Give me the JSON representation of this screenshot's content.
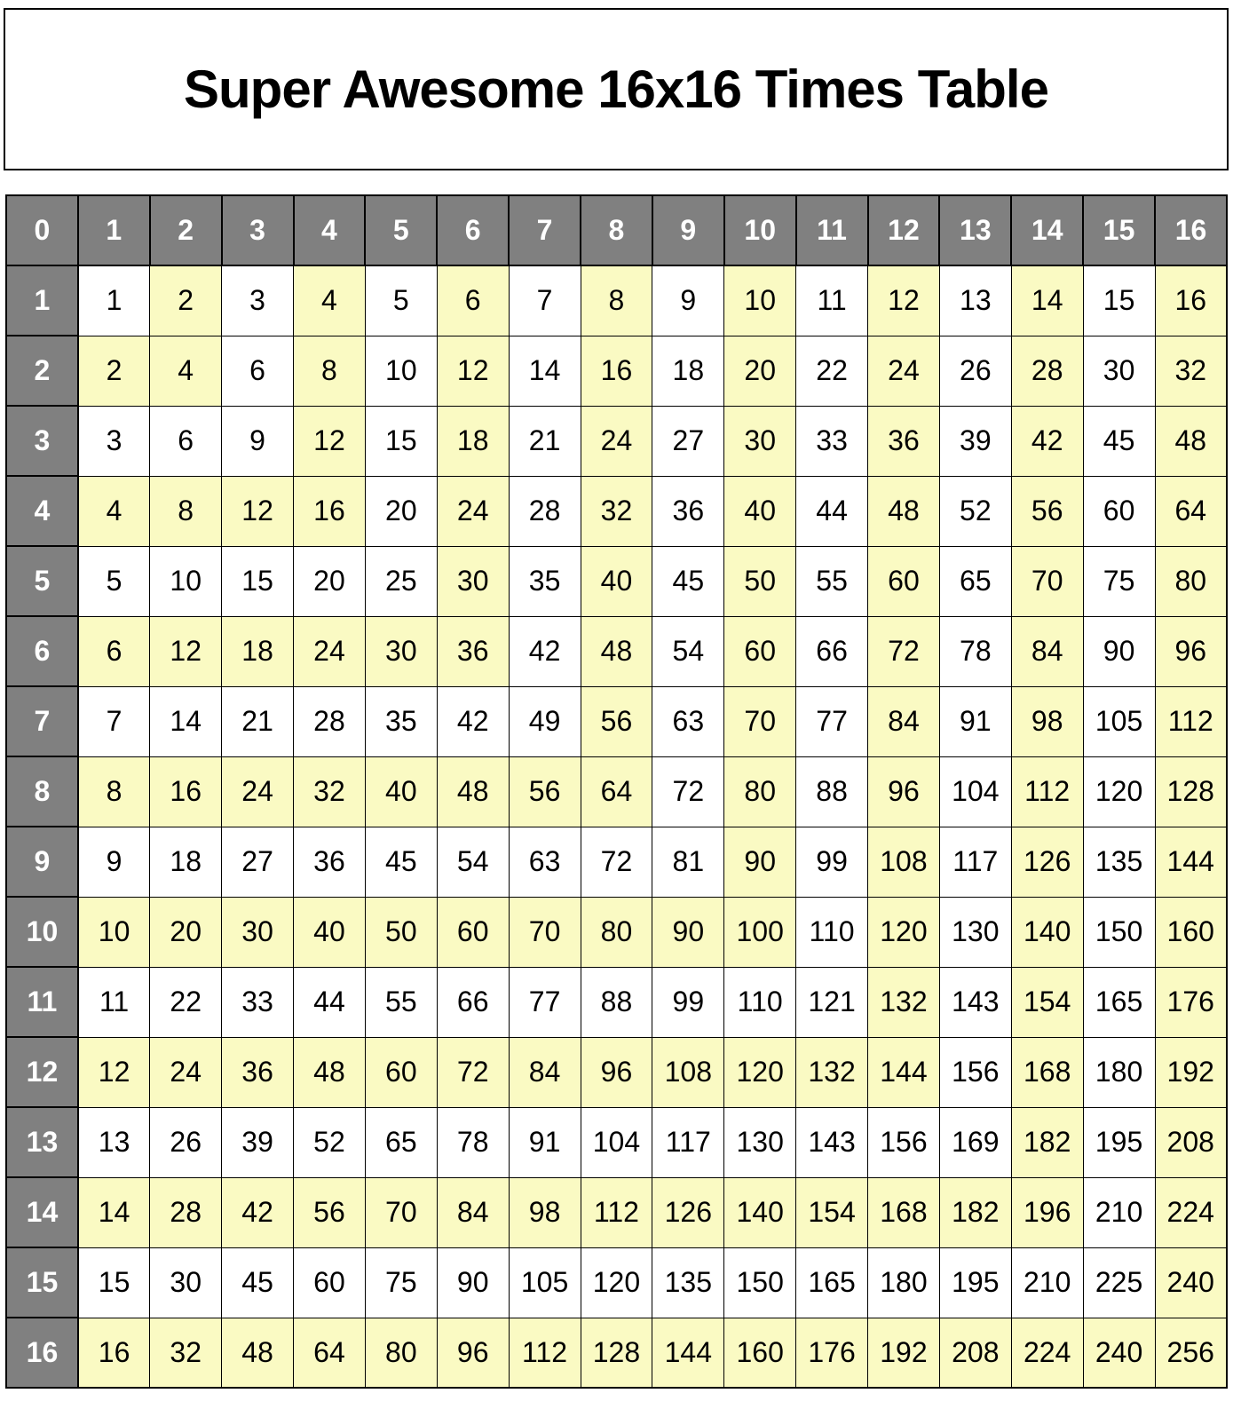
{
  "title": "Super Awesome 16x16 Times Table",
  "colors": {
    "header_bg": "#808080",
    "header_text": "#FFFFFF",
    "cell_bg": "#FFFFFF",
    "cell_text": "#000000",
    "highlight_bg": "#FAFAC3",
    "border": "#000000"
  },
  "table": {
    "corner_label": "0",
    "column_headers": [
      "1",
      "2",
      "3",
      "4",
      "5",
      "6",
      "7",
      "8",
      "9",
      "10",
      "11",
      "12",
      "13",
      "14",
      "15",
      "16"
    ],
    "rows": [
      {
        "header": "1",
        "cells": [
          1,
          2,
          3,
          4,
          5,
          6,
          7,
          8,
          9,
          10,
          11,
          12,
          13,
          14,
          15,
          16
        ],
        "highlight": [
          0,
          1,
          0,
          1,
          0,
          1,
          0,
          1,
          0,
          1,
          0,
          1,
          0,
          1,
          0,
          1
        ]
      },
      {
        "header": "2",
        "cells": [
          2,
          4,
          6,
          8,
          10,
          12,
          14,
          16,
          18,
          20,
          22,
          24,
          26,
          28,
          30,
          32
        ],
        "highlight": [
          1,
          1,
          0,
          1,
          0,
          1,
          0,
          1,
          0,
          1,
          0,
          1,
          0,
          1,
          0,
          1
        ]
      },
      {
        "header": "3",
        "cells": [
          3,
          6,
          9,
          12,
          15,
          18,
          21,
          24,
          27,
          30,
          33,
          36,
          39,
          42,
          45,
          48
        ],
        "highlight": [
          0,
          0,
          0,
          1,
          0,
          1,
          0,
          1,
          0,
          1,
          0,
          1,
          0,
          1,
          0,
          1
        ]
      },
      {
        "header": "4",
        "cells": [
          4,
          8,
          12,
          16,
          20,
          24,
          28,
          32,
          36,
          40,
          44,
          48,
          52,
          56,
          60,
          64
        ],
        "highlight": [
          1,
          1,
          1,
          1,
          0,
          1,
          0,
          1,
          0,
          1,
          0,
          1,
          0,
          1,
          0,
          1
        ]
      },
      {
        "header": "5",
        "cells": [
          5,
          10,
          15,
          20,
          25,
          30,
          35,
          40,
          45,
          50,
          55,
          60,
          65,
          70,
          75,
          80
        ],
        "highlight": [
          0,
          0,
          0,
          0,
          0,
          1,
          0,
          1,
          0,
          1,
          0,
          1,
          0,
          1,
          0,
          1
        ]
      },
      {
        "header": "6",
        "cells": [
          6,
          12,
          18,
          24,
          30,
          36,
          42,
          48,
          54,
          60,
          66,
          72,
          78,
          84,
          90,
          96
        ],
        "highlight": [
          1,
          1,
          1,
          1,
          1,
          1,
          0,
          1,
          0,
          1,
          0,
          1,
          0,
          1,
          0,
          1
        ]
      },
      {
        "header": "7",
        "cells": [
          7,
          14,
          21,
          28,
          35,
          42,
          49,
          56,
          63,
          70,
          77,
          84,
          91,
          98,
          105,
          112
        ],
        "highlight": [
          0,
          0,
          0,
          0,
          0,
          0,
          0,
          1,
          0,
          1,
          0,
          1,
          0,
          1,
          0,
          1
        ]
      },
      {
        "header": "8",
        "cells": [
          8,
          16,
          24,
          32,
          40,
          48,
          56,
          64,
          72,
          80,
          88,
          96,
          104,
          112,
          120,
          128
        ],
        "highlight": [
          1,
          1,
          1,
          1,
          1,
          1,
          1,
          1,
          0,
          1,
          0,
          1,
          0,
          1,
          0,
          1
        ]
      },
      {
        "header": "9",
        "cells": [
          9,
          18,
          27,
          36,
          45,
          54,
          63,
          72,
          81,
          90,
          99,
          108,
          117,
          126,
          135,
          144
        ],
        "highlight": [
          0,
          0,
          0,
          0,
          0,
          0,
          0,
          0,
          0,
          1,
          0,
          1,
          0,
          1,
          0,
          1
        ]
      },
      {
        "header": "10",
        "cells": [
          10,
          20,
          30,
          40,
          50,
          60,
          70,
          80,
          90,
          100,
          110,
          120,
          130,
          140,
          150,
          160
        ],
        "highlight": [
          1,
          1,
          1,
          1,
          1,
          1,
          1,
          1,
          1,
          1,
          0,
          1,
          0,
          1,
          0,
          1
        ]
      },
      {
        "header": "11",
        "cells": [
          11,
          22,
          33,
          44,
          55,
          66,
          77,
          88,
          99,
          110,
          121,
          132,
          143,
          154,
          165,
          176
        ],
        "highlight": [
          0,
          0,
          0,
          0,
          0,
          0,
          0,
          0,
          0,
          0,
          0,
          1,
          0,
          1,
          0,
          1
        ]
      },
      {
        "header": "12",
        "cells": [
          12,
          24,
          36,
          48,
          60,
          72,
          84,
          96,
          108,
          120,
          132,
          144,
          156,
          168,
          180,
          192
        ],
        "highlight": [
          1,
          1,
          1,
          1,
          1,
          1,
          1,
          1,
          1,
          1,
          1,
          1,
          0,
          1,
          0,
          1
        ]
      },
      {
        "header": "13",
        "cells": [
          13,
          26,
          39,
          52,
          65,
          78,
          91,
          104,
          117,
          130,
          143,
          156,
          169,
          182,
          195,
          208
        ],
        "highlight": [
          0,
          0,
          0,
          0,
          0,
          0,
          0,
          0,
          0,
          0,
          0,
          0,
          0,
          1,
          0,
          1
        ]
      },
      {
        "header": "14",
        "cells": [
          14,
          28,
          42,
          56,
          70,
          84,
          98,
          112,
          126,
          140,
          154,
          168,
          182,
          196,
          210,
          224
        ],
        "highlight": [
          1,
          1,
          1,
          1,
          1,
          1,
          1,
          1,
          1,
          1,
          1,
          1,
          1,
          1,
          0,
          1
        ]
      },
      {
        "header": "15",
        "cells": [
          15,
          30,
          45,
          60,
          75,
          90,
          105,
          120,
          135,
          150,
          165,
          180,
          195,
          210,
          225,
          240
        ],
        "highlight": [
          0,
          0,
          0,
          0,
          0,
          0,
          0,
          0,
          0,
          0,
          0,
          0,
          0,
          0,
          0,
          1
        ]
      },
      {
        "header": "16",
        "cells": [
          16,
          32,
          48,
          64,
          80,
          96,
          112,
          128,
          144,
          160,
          176,
          192,
          208,
          224,
          240,
          256
        ],
        "highlight": [
          1,
          1,
          1,
          1,
          1,
          1,
          1,
          1,
          1,
          1,
          1,
          1,
          1,
          1,
          1,
          1
        ]
      }
    ]
  }
}
